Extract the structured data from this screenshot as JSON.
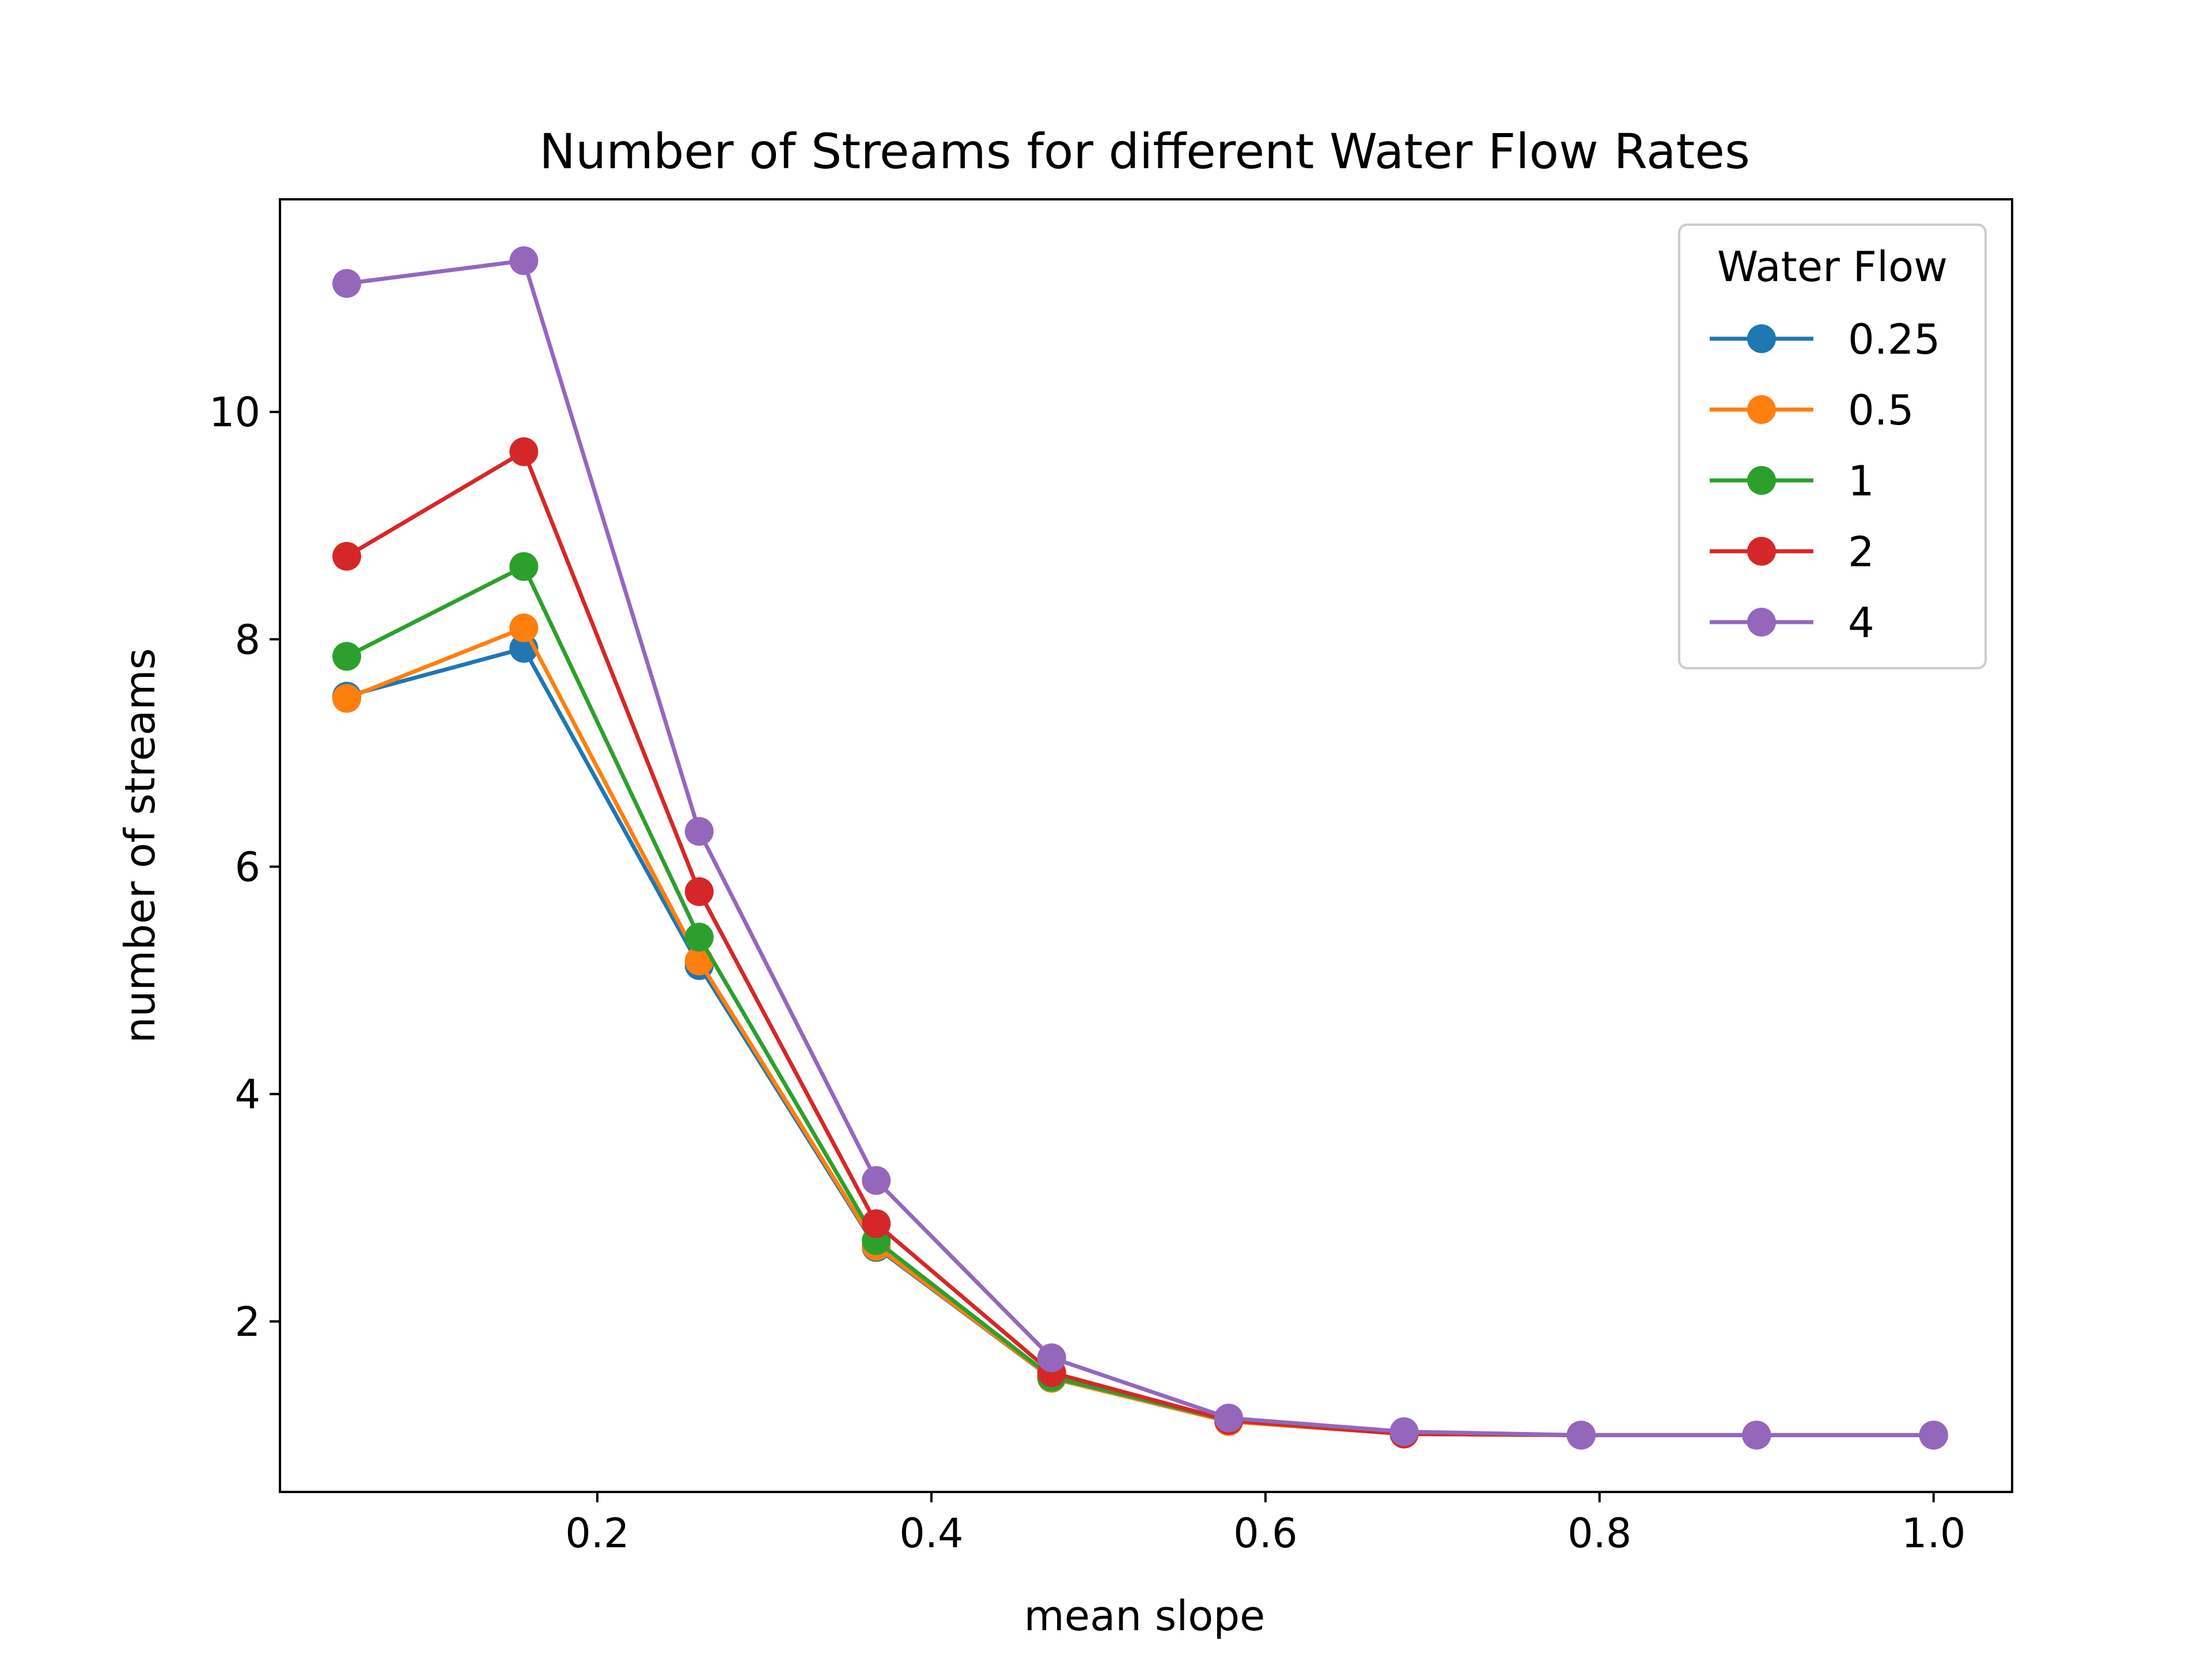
{
  "chart_data": {
    "type": "line",
    "title": "Number of Streams for different Water Flow Rates",
    "xlabel": "mean slope",
    "ylabel": "number of streams",
    "xlim": [
      0.01,
      1.047
    ],
    "ylim": [
      0.5,
      11.87
    ],
    "xticks": [
      0.2,
      0.4,
      0.6,
      0.8,
      1.0
    ],
    "xtick_labels": [
      "0.2",
      "0.4",
      "0.6",
      "0.8",
      "1.0"
    ],
    "yticks": [
      2,
      4,
      6,
      8,
      10
    ],
    "ytick_labels": [
      "2",
      "4",
      "6",
      "8",
      "10"
    ],
    "x": [
      0.05,
      0.156,
      0.261,
      0.367,
      0.472,
      0.578,
      0.683,
      0.789,
      0.894,
      1.0
    ],
    "grid": false,
    "legend": {
      "title": "Water Flow",
      "placement": "top-right"
    },
    "series": [
      {
        "name": "0.25",
        "color": "#1f77b4",
        "values": [
          7.5,
          7.92,
          5.13,
          2.65,
          1.5,
          1.12,
          1.01,
          1.0,
          1.0,
          1.0
        ]
      },
      {
        "name": "0.5",
        "color": "#ff7f0e",
        "values": [
          7.48,
          8.1,
          5.17,
          2.66,
          1.5,
          1.12,
          1.01,
          1.0,
          1.0,
          1.0
        ]
      },
      {
        "name": "1",
        "color": "#2ca02c",
        "values": [
          7.85,
          8.64,
          5.38,
          2.71,
          1.51,
          1.13,
          1.01,
          1.0,
          1.0,
          1.0
        ]
      },
      {
        "name": "2",
        "color": "#d62728",
        "values": [
          8.73,
          9.65,
          5.78,
          2.86,
          1.55,
          1.13,
          1.01,
          1.0,
          1.0,
          1.0
        ]
      },
      {
        "name": "4",
        "color": "#9467bd",
        "values": [
          11.13,
          11.33,
          6.31,
          3.24,
          1.68,
          1.15,
          1.03,
          1.0,
          1.0,
          1.0
        ]
      }
    ]
  }
}
